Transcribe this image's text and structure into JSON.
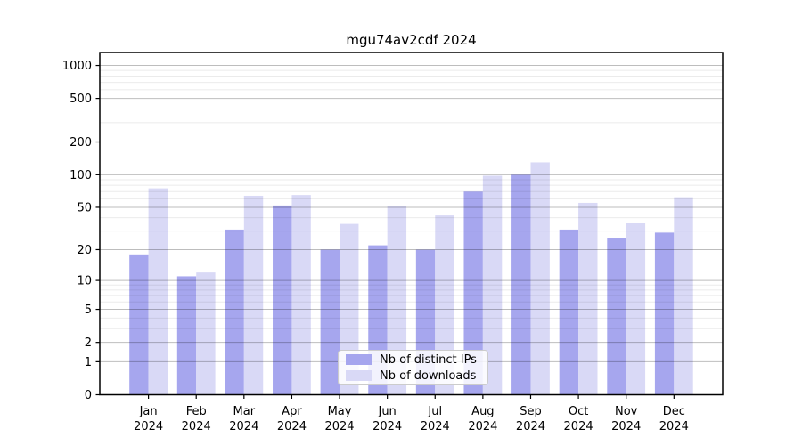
{
  "title": "mgu74av2cdf 2024",
  "colors": {
    "bar_distinct_ips": "#a6a6ee",
    "bar_downloads": "#d9d9f6",
    "grid_major": "rgba(0,0,0,0.26)",
    "grid_minor": "rgba(0,0,0,0.08)",
    "axis": "#000000",
    "text": "#000000",
    "legend_border": "#cccccc",
    "legend_bg": "#ffffff"
  },
  "legend": {
    "items": [
      {
        "label": "Nb of distinct IPs",
        "color": "#a6a6ee"
      },
      {
        "label": "Nb of downloads",
        "color": "#d9d9f6"
      }
    ]
  },
  "y_axis": {
    "tick_labels": [
      "0",
      "1",
      "2",
      "5",
      "10",
      "20",
      "50",
      "100",
      "200",
      "500",
      "1000"
    ]
  },
  "x_axis": {
    "months": [
      "Jan",
      "Feb",
      "Mar",
      "Apr",
      "May",
      "Jun",
      "Jul",
      "Aug",
      "Sep",
      "Oct",
      "Nov",
      "Dec"
    ],
    "year": "2024"
  },
  "chart_data": {
    "type": "bar",
    "title": "mgu74av2cdf 2024",
    "categories": [
      "Jan 2024",
      "Feb 2024",
      "Mar 2024",
      "Apr 2024",
      "May 2024",
      "Jun 2024",
      "Jul 2024",
      "Aug 2024",
      "Sep 2024",
      "Oct 2024",
      "Nov 2024",
      "Dec 2024"
    ],
    "series": [
      {
        "name": "Nb of distinct IPs",
        "values": [
          18,
          11,
          31,
          52,
          20,
          22,
          20,
          70,
          100,
          31,
          26,
          29
        ]
      },
      {
        "name": "Nb of downloads",
        "values": [
          75,
          12,
          64,
          65,
          35,
          51,
          42,
          98,
          130,
          55,
          36,
          62
        ]
      }
    ],
    "xlabel": "",
    "ylabel": "",
    "yscale": "symlog (log10 of 1+value)",
    "yticks": [
      0,
      1,
      2,
      5,
      10,
      20,
      50,
      100,
      200,
      500,
      1000
    ],
    "minor_gridlines": [
      3,
      4,
      6,
      7,
      8,
      9,
      30,
      40,
      60,
      70,
      80,
      90,
      300,
      400,
      600,
      700,
      800,
      900
    ],
    "ylim": [
      0,
      1310
    ],
    "grid": "both",
    "legend_position": "lower center inside"
  }
}
